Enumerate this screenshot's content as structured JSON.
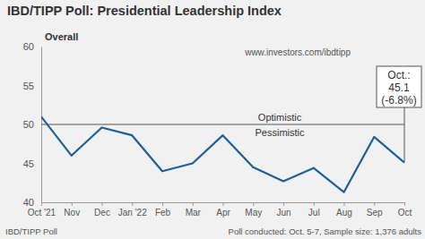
{
  "chart_data": {
    "type": "line",
    "title": "IBD/TIPP Poll: Presidential Leadership Index",
    "subtitle": "Overall",
    "source_url": "www.investors.com/ibdtipp",
    "categories": [
      "Oct '21",
      "Nov",
      "Dec",
      "Jan '22",
      "Feb",
      "Mar",
      "Apr",
      "May",
      "Jun",
      "Jul",
      "Aug",
      "Sep",
      "Oct"
    ],
    "values": [
      51.0,
      46.0,
      49.6,
      48.6,
      44.0,
      45.0,
      48.6,
      44.5,
      42.7,
      44.4,
      41.3,
      48.4,
      45.1
    ],
    "color": "#1c5f99",
    "ylim": [
      40,
      60
    ],
    "yticks": [
      40,
      45,
      50,
      55,
      60
    ],
    "grid": false,
    "reference_line": {
      "value": 50,
      "labels": [
        "Optimistic",
        "Pessimistic"
      ]
    },
    "callout": {
      "label": "Oct.:",
      "value": 45.1,
      "change": "(-6.8%)"
    },
    "source": "IBD/TIPP Poll",
    "note": "Poll conducted: Oct. 5-7, Sample size: 1,376 adults"
  }
}
